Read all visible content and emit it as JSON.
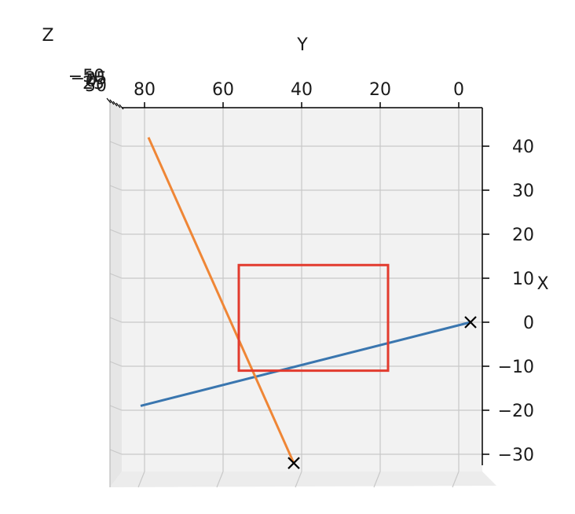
{
  "chart_data": {
    "type": "line",
    "projection": "3d",
    "axes": {
      "x": {
        "label": "X",
        "ticks": [
          40,
          30,
          20,
          10,
          0,
          -10,
          -20,
          -30
        ],
        "tick_labels": [
          "40",
          "30",
          "20",
          "10",
          "0",
          "−10",
          "−20",
          "−30"
        ],
        "lim": [
          -34,
          44
        ]
      },
      "y": {
        "label": "Y",
        "ticks": [
          80,
          60,
          40,
          20,
          0
        ],
        "tick_labels": [
          "80",
          "60",
          "40",
          "20",
          "0"
        ],
        "lim": [
          -6,
          86
        ]
      },
      "z": {
        "label": "Z",
        "tick_labels": [
          "−50",
          "−25",
          "0",
          "25",
          "50"
        ]
      }
    },
    "grid": true,
    "series": [
      {
        "color": "#3a76af",
        "points": [
          {
            "y": 81,
            "x": -19
          },
          {
            "y": -3,
            "x": 0
          }
        ],
        "end_marker": "x"
      },
      {
        "color": "#ef8636",
        "points": [
          {
            "y": 79,
            "x": 42
          },
          {
            "y": 42,
            "x": -32
          }
        ],
        "end_marker": "x"
      },
      {
        "color": "#e23b2e",
        "shape": "rectangle",
        "points": [
          {
            "y": 56,
            "x": 13
          },
          {
            "y": 18,
            "x": 13
          },
          {
            "y": 18,
            "x": -11
          },
          {
            "y": 56,
            "x": -11
          }
        ]
      }
    ]
  }
}
